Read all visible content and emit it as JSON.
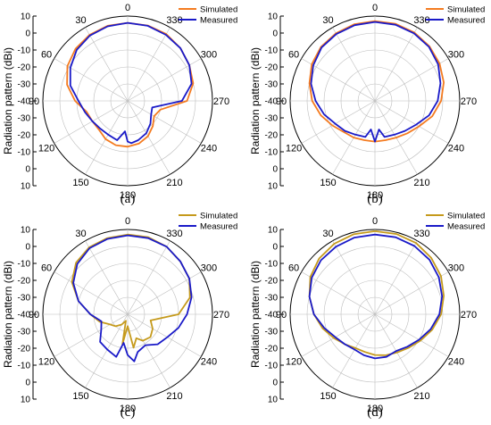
{
  "colors": {
    "simulated_ab": "#f47b20",
    "simulated_cd": "#c59a1c",
    "measured": "#1a1ac8",
    "grid": "#bdbdbd",
    "axis": "#000000"
  },
  "chart_data": [
    {
      "type": "polar-line",
      "panel_label": "(a)",
      "ylabel": "Radiation pattern (dBi)",
      "rlim": [
        -40,
        10
      ],
      "r_ticks": [
        10,
        0,
        -10,
        -20,
        -30,
        -40,
        -30,
        -20,
        -10,
        0,
        10
      ],
      "angle_ticks": [
        "0",
        "30",
        "60",
        "90",
        "120",
        "150",
        "180",
        "210",
        "240",
        "270",
        "300",
        "330"
      ],
      "angle_direction": "clockwise-from-top-labels-counterclockwise",
      "legend": "top-right",
      "series": [
        {
          "name": "Simulated",
          "color_key": "simulated_ab",
          "theta": [
            0,
            15,
            30,
            45,
            60,
            75,
            90,
            105,
            120,
            135,
            150,
            165,
            180,
            195,
            210,
            225,
            240,
            255,
            270,
            285,
            300,
            315,
            330,
            345
          ],
          "r": [
            6,
            5.8,
            5,
            3.5,
            1,
            -3,
            -9,
            -15,
            -16,
            -16,
            -14,
            -13,
            -13,
            -14,
            -16,
            -19,
            -22,
            -20,
            -5,
            0,
            2,
            4,
            5.5,
            6
          ]
        },
        {
          "name": "Measured",
          "color_key": "measured",
          "theta": [
            0,
            15,
            30,
            45,
            60,
            75,
            90,
            105,
            120,
            135,
            150,
            165,
            175,
            180,
            185,
            195,
            210,
            225,
            240,
            255,
            270,
            285,
            300,
            315,
            330,
            345
          ],
          "r": [
            6,
            5.5,
            4.5,
            2.5,
            -1,
            -5,
            -11,
            -14,
            -16,
            -17,
            -17,
            -16,
            -22,
            -16,
            -15,
            -16,
            -18,
            -21,
            -24,
            -25,
            -8,
            -1,
            2,
            4,
            5,
            5.8
          ]
        }
      ]
    },
    {
      "type": "polar-line",
      "panel_label": "(b)",
      "ylabel": "Radiation pattern (dBi)",
      "rlim": [
        -40,
        10
      ],
      "r_ticks": [
        10,
        0,
        -10,
        -20,
        -30,
        -40,
        -30,
        -20,
        -10,
        0,
        10
      ],
      "angle_ticks": [
        "0",
        "30",
        "60",
        "90",
        "120",
        "150",
        "180",
        "210",
        "240",
        "270",
        "300",
        "330"
      ],
      "legend": "top-right",
      "series": [
        {
          "name": "Simulated",
          "color_key": "simulated_ab",
          "theta": [
            0,
            15,
            30,
            45,
            60,
            75,
            90,
            105,
            120,
            135,
            150,
            165,
            180,
            195,
            210,
            225,
            240,
            255,
            270,
            285,
            300,
            315,
            330,
            345
          ],
          "r": [
            7,
            6.8,
            6,
            5,
            3,
            0,
            -3,
            -7,
            -11,
            -14,
            -15,
            -16,
            -16,
            -16,
            -15,
            -13,
            -10,
            -5,
            -1,
            2,
            4,
            5.5,
            6.5,
            7
          ]
        },
        {
          "name": "Measured",
          "color_key": "measured",
          "theta": [
            0,
            15,
            30,
            45,
            60,
            75,
            90,
            105,
            120,
            135,
            150,
            165,
            172,
            180,
            188,
            195,
            210,
            225,
            240,
            255,
            270,
            285,
            300,
            315,
            330,
            345
          ],
          "r": [
            6.5,
            6.2,
            5.5,
            4.5,
            2,
            -1,
            -5,
            -9,
            -13,
            -15,
            -17,
            -18,
            -23,
            -16,
            -23,
            -18,
            -17,
            -15,
            -12,
            -7,
            -3,
            0,
            3,
            5,
            6,
            6.5
          ]
        }
      ]
    },
    {
      "type": "polar-line",
      "panel_label": "(c)",
      "ylabel": "Radiation pattern (dBi)",
      "rlim": [
        -40,
        10
      ],
      "r_ticks": [
        10,
        0,
        -10,
        -20,
        -30,
        -40,
        -30,
        -20,
        -10,
        0,
        10
      ],
      "angle_ticks": [
        "0",
        "30",
        "60",
        "90",
        "120",
        "150",
        "180",
        "210",
        "240",
        "270",
        "300",
        "330"
      ],
      "legend": "top-right",
      "series": [
        {
          "name": "Simulated",
          "color_key": "simulated_cd",
          "theta": [
            0,
            15,
            30,
            45,
            60,
            75,
            90,
            105,
            120,
            135,
            150,
            165,
            170,
            180,
            190,
            200,
            210,
            225,
            240,
            255,
            270,
            285,
            300,
            315,
            330,
            345
          ],
          "r": [
            7,
            6.5,
            5.5,
            3,
            -2,
            -10,
            -18,
            -23,
            -28,
            -30,
            -33,
            -36,
            -22,
            -33,
            -20,
            -25,
            -22,
            -21,
            -23,
            -26,
            -10,
            -2,
            2,
            4,
            6,
            7
          ]
        },
        {
          "name": "Measured",
          "color_key": "measured",
          "theta": [
            0,
            15,
            30,
            45,
            60,
            75,
            90,
            105,
            120,
            135,
            150,
            165,
            172,
            180,
            188,
            195,
            210,
            225,
            240,
            255,
            270,
            285,
            300,
            315,
            330,
            345
          ],
          "r": [
            6.5,
            6,
            5,
            2,
            -3,
            -10,
            -18,
            -24,
            -22,
            -17,
            -16,
            -14,
            -23,
            -16,
            -12,
            -17,
            -19,
            -15,
            -13,
            -9,
            -5,
            -1,
            2,
            4,
            6,
            6.5
          ]
        }
      ]
    },
    {
      "type": "polar-line",
      "panel_label": "(d)",
      "ylabel": "Radiation pattern (dBi)",
      "rlim": [
        -40,
        10
      ],
      "r_ticks": [
        10,
        0,
        -10,
        -20,
        -30,
        -40,
        -30,
        -20,
        -10,
        0,
        10
      ],
      "angle_ticks": [
        "0",
        "30",
        "60",
        "90",
        "120",
        "150",
        "180",
        "210",
        "240",
        "270",
        "300",
        "330"
      ],
      "legend": "top-right",
      "series": [
        {
          "name": "Simulated",
          "color_key": "simulated_cd",
          "theta": [
            0,
            15,
            30,
            45,
            60,
            75,
            90,
            105,
            120,
            135,
            150,
            165,
            180,
            195,
            210,
            225,
            240,
            255,
            270,
            285,
            300,
            315,
            330,
            345
          ],
          "r": [
            9,
            8.8,
            8,
            6.5,
            4,
            0,
            -4,
            -8,
            -12,
            -15,
            -17,
            -17,
            -16,
            -15,
            -14,
            -12,
            -9,
            -5,
            -1,
            2,
            5,
            7,
            8.5,
            9
          ]
        },
        {
          "name": "Measured",
          "color_key": "measured",
          "theta": [
            0,
            15,
            30,
            45,
            60,
            75,
            90,
            105,
            120,
            135,
            150,
            165,
            180,
            195,
            210,
            225,
            240,
            255,
            270,
            285,
            300,
            315,
            330,
            345
          ],
          "r": [
            7,
            6.8,
            6,
            5,
            3,
            0,
            -4,
            -9,
            -13,
            -15,
            -16,
            -15,
            -14,
            -14,
            -15,
            -13,
            -10,
            -6,
            -2,
            1,
            3.5,
            5.5,
            6.5,
            7
          ]
        }
      ]
    }
  ]
}
